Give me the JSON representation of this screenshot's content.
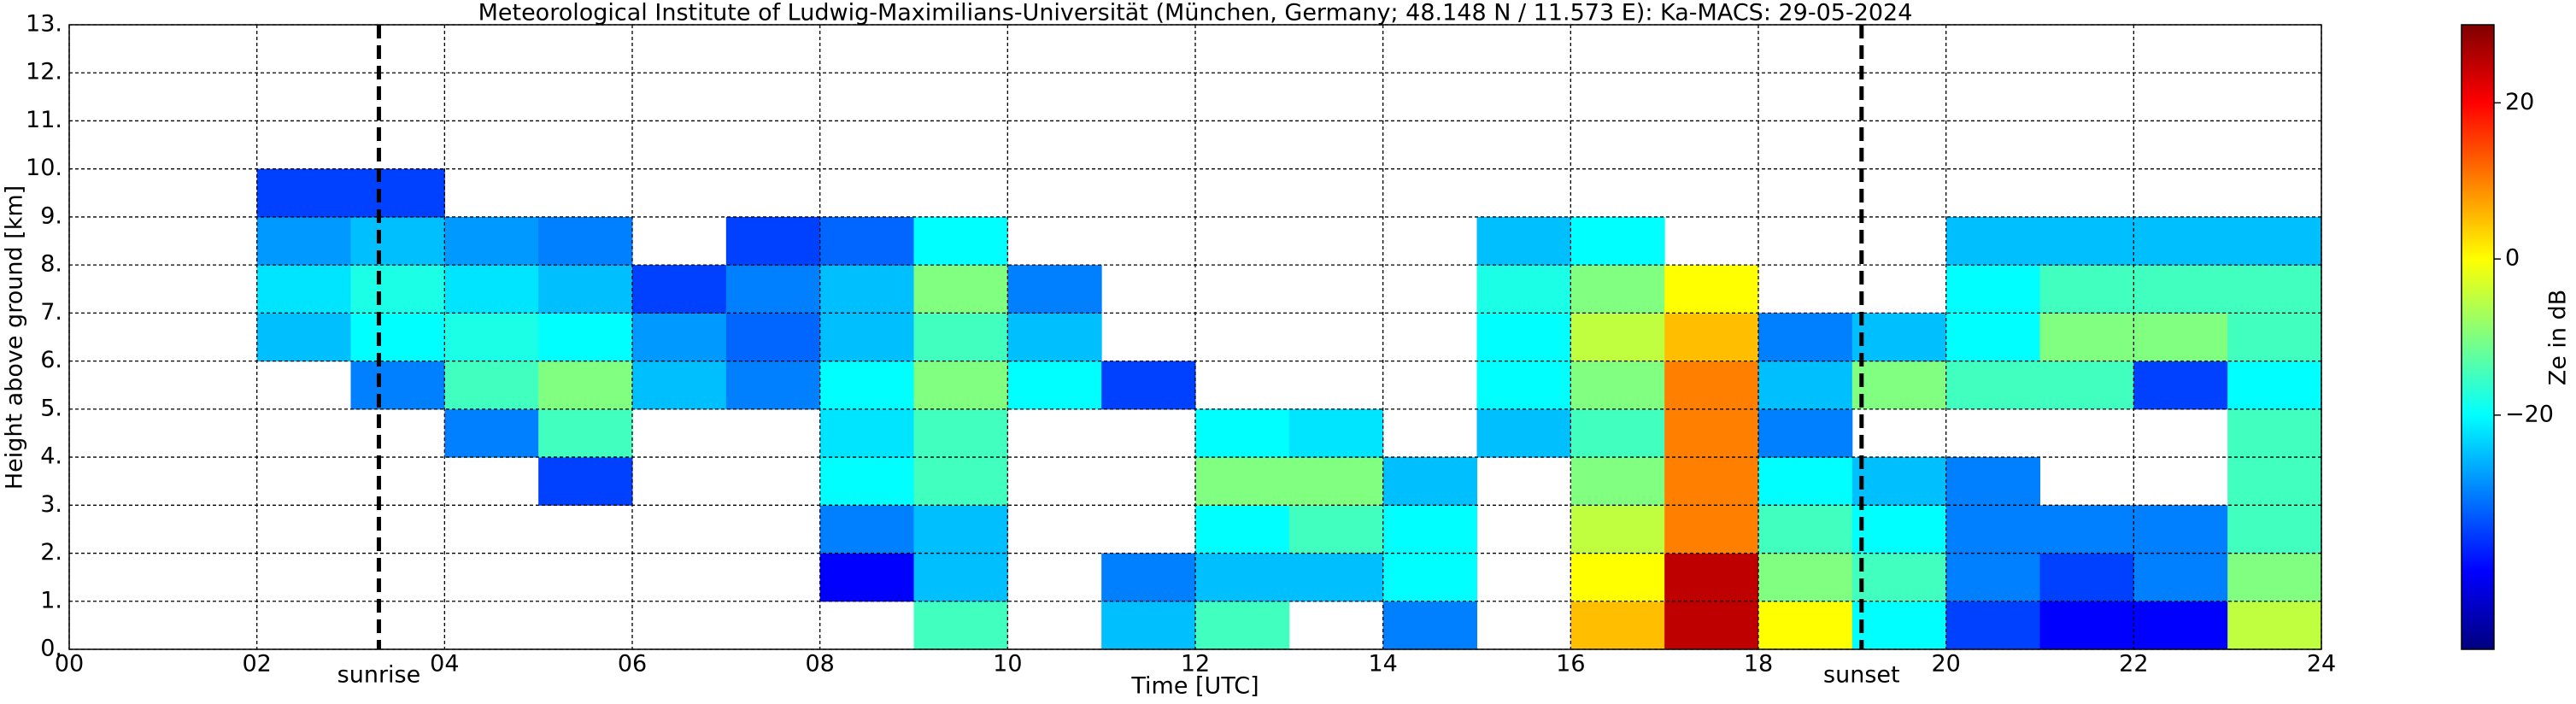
{
  "chart_data": {
    "type": "heatmap",
    "title": "Meteorological Institute of Ludwig-Maximilians-Universität (München, Germany; 48.148 N / 11.573 E):    Ka-MACS: 29-05-2024",
    "x_label": "Time [UTC]",
    "y_label": "Height above ground [km]",
    "colorbar_label": "Ze in dB",
    "colormap": "jet",
    "grid": true,
    "xlim": [
      0,
      24
    ],
    "ylim": [
      0,
      13
    ],
    "clim": [
      -50,
      30
    ],
    "xticks": [
      {
        "value": 0,
        "label": "00"
      },
      {
        "value": 2,
        "label": "02"
      },
      {
        "value": 4,
        "label": "04"
      },
      {
        "value": 6,
        "label": "06"
      },
      {
        "value": 8,
        "label": "08"
      },
      10,
      12,
      14,
      16,
      18,
      20,
      22,
      24
    ],
    "yticks": [
      {
        "value": 0,
        "label": "0."
      },
      {
        "value": 1,
        "label": "1."
      },
      {
        "value": 2,
        "label": "2."
      },
      {
        "value": 3,
        "label": "3."
      },
      {
        "value": 4,
        "label": "4."
      },
      {
        "value": 5,
        "label": "5."
      },
      {
        "value": 6,
        "label": "6."
      },
      {
        "value": 7,
        "label": "7."
      },
      {
        "value": 8,
        "label": "8."
      },
      {
        "value": 9,
        "label": "9."
      },
      {
        "value": 10,
        "label": "10."
      },
      {
        "value": 11,
        "label": "11."
      },
      {
        "value": 12,
        "label": "12."
      },
      {
        "value": 13,
        "label": "13."
      }
    ],
    "cticks": [
      20,
      0,
      {
        "value": -20,
        "label": "−20"
      }
    ],
    "annotations": [
      {
        "text": "sunrise",
        "x": 3.3
      },
      {
        "text": "sunset",
        "x": 19.1
      }
    ],
    "x_edges": [
      0,
      1,
      2,
      3,
      4,
      5,
      6,
      7,
      8,
      9,
      10,
      11,
      12,
      13,
      14,
      15,
      16,
      17,
      18,
      19,
      20,
      21,
      22,
      23,
      24
    ],
    "y_edges": [
      0,
      1,
      2,
      3,
      4,
      5,
      6,
      7,
      8,
      9,
      10,
      11,
      12,
      13
    ],
    "z": [
      [
        null,
        null,
        null,
        null,
        null,
        null,
        null,
        null,
        null,
        -15,
        null,
        -25,
        -15,
        null,
        -30,
        null,
        5,
        25,
        0,
        -20,
        -35,
        -40,
        -40,
        -5
      ],
      [
        null,
        null,
        null,
        null,
        null,
        null,
        null,
        null,
        -40,
        -25,
        null,
        -30,
        -25,
        -25,
        -20,
        null,
        0,
        25,
        -10,
        -15,
        -30,
        -35,
        -30,
        -10
      ],
      [
        null,
        null,
        null,
        null,
        null,
        null,
        null,
        null,
        -30,
        -25,
        null,
        null,
        -20,
        -15,
        -20,
        null,
        -5,
        10,
        -15,
        -20,
        -30,
        -30,
        -30,
        -15
      ],
      [
        null,
        null,
        null,
        null,
        null,
        -35,
        null,
        null,
        -20,
        -15,
        null,
        null,
        -10,
        -10,
        -25,
        null,
        -10,
        10,
        -20,
        -25,
        -30,
        null,
        null,
        -15
      ],
      [
        null,
        null,
        null,
        null,
        -30,
        -15,
        null,
        null,
        -22,
        -15,
        null,
        null,
        -20,
        -22,
        null,
        -25,
        -15,
        10,
        -30,
        null,
        null,
        null,
        null,
        -15
      ],
      [
        null,
        null,
        null,
        -30,
        -15,
        -10,
        -25,
        -30,
        -20,
        -10,
        -20,
        -35,
        null,
        null,
        null,
        -20,
        -10,
        10,
        -25,
        -10,
        -15,
        -15,
        -35,
        -20
      ],
      [
        null,
        null,
        -25,
        -20,
        -18,
        -20,
        -28,
        -32,
        -25,
        -15,
        -25,
        null,
        null,
        null,
        null,
        -20,
        -5,
        5,
        -30,
        -25,
        -20,
        -10,
        -10,
        -15
      ],
      [
        null,
        null,
        -22,
        -18,
        -22,
        -25,
        -35,
        -30,
        -25,
        -10,
        -30,
        null,
        null,
        null,
        null,
        -18,
        -10,
        0,
        null,
        null,
        -20,
        -15,
        -15,
        -15
      ],
      [
        null,
        null,
        -28,
        -25,
        -28,
        -30,
        null,
        -35,
        -32,
        -20,
        null,
        null,
        null,
        null,
        null,
        -25,
        -20,
        null,
        null,
        null,
        -25,
        -25,
        -25,
        -25
      ],
      [
        null,
        null,
        -35,
        -35,
        null,
        null,
        null,
        null,
        null,
        null,
        null,
        null,
        null,
        null,
        null,
        null,
        null,
        null,
        null,
        null,
        null,
        null,
        null,
        null
      ],
      [
        null,
        null,
        null,
        null,
        null,
        null,
        null,
        null,
        null,
        null,
        null,
        null,
        null,
        null,
        null,
        null,
        null,
        null,
        null,
        null,
        null,
        null,
        null,
        null
      ],
      [
        null,
        null,
        null,
        null,
        null,
        null,
        null,
        null,
        null,
        null,
        null,
        null,
        null,
        null,
        null,
        null,
        null,
        null,
        null,
        null,
        null,
        null,
        null,
        null
      ],
      [
        null,
        null,
        null,
        null,
        null,
        null,
        null,
        null,
        null,
        null,
        null,
        null,
        null,
        null,
        null,
        null,
        null,
        null,
        null,
        null,
        null,
        null,
        null,
        null
      ]
    ]
  }
}
